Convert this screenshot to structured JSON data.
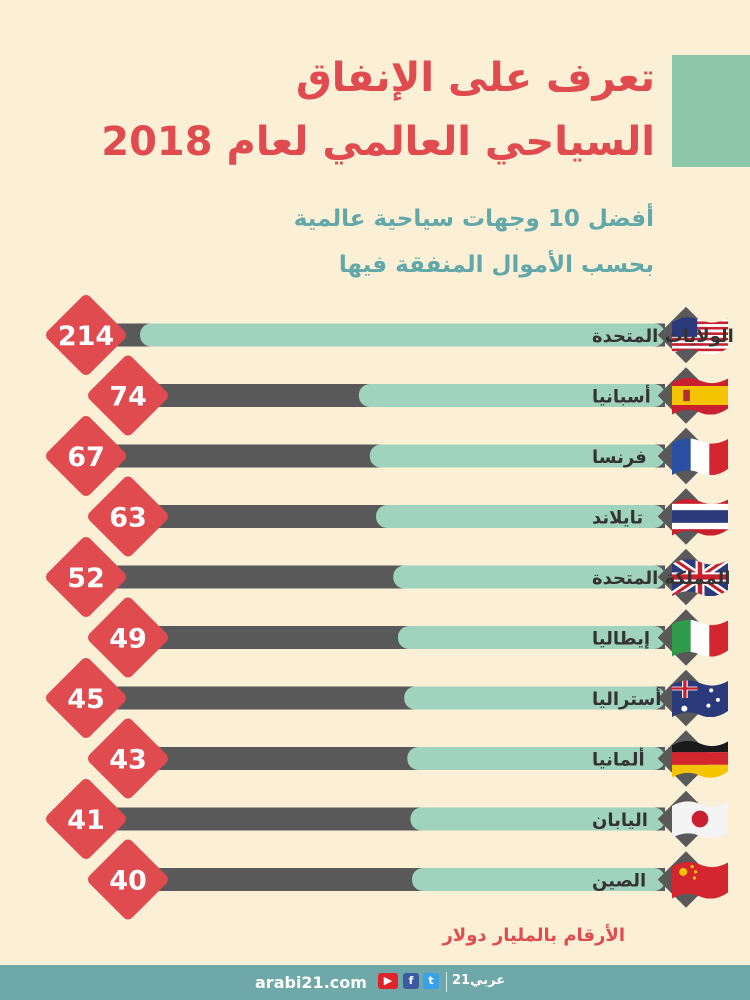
{
  "header": {
    "title_line1": "تعرف على الإنفاق",
    "title_line2": "السياحي العالمي لعام 2018",
    "subtitle_line1": "أفضل 10 وجهات سياحية عالمية",
    "subtitle_line2": "بحسب الأموال المنفقة فيها"
  },
  "colors": {
    "background": "#fbf0d6",
    "title": "#e04b4f",
    "subtitle": "#62a8a8",
    "bar_fill": "#9fd3bd",
    "bar_track": "#595959",
    "value_badge": "#e04b4f",
    "footer": "#6fa8a8"
  },
  "chart_data": {
    "type": "bar",
    "orientation": "horizontal",
    "categories": [
      "الولايات المتحدة",
      "أسبانيا",
      "فرنسا",
      "تايلاند",
      "المملكة المتحدة",
      "إيطاليا",
      "أستراليا",
      "ألمانيا",
      "اليابان",
      "الصين"
    ],
    "values": [
      214,
      74,
      67,
      63,
      52,
      49,
      45,
      43,
      41,
      40
    ],
    "flag_icons": [
      "usa-flag-icon",
      "spain-flag-icon",
      "france-flag-icon",
      "thailand-flag-icon",
      "uk-flag-icon",
      "italy-flag-icon",
      "australia-flag-icon",
      "germany-flag-icon",
      "japan-flag-icon",
      "china-flag-icon"
    ],
    "title": "",
    "unit_note": "الأرقام بالمليار دولار"
  },
  "footer": {
    "site": "arabi21.com",
    "brand": "عربي21"
  }
}
